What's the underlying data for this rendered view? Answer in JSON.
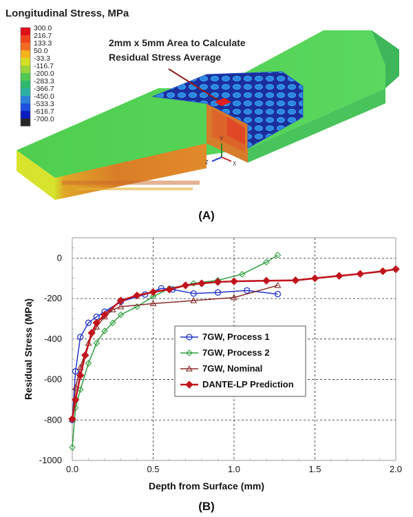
{
  "figure_a": {
    "legend_title": "Longitudinal Stress, MPa",
    "legend_values": [
      "300.0",
      "216.7",
      "133.3",
      "50.0",
      "-33.3",
      "-116.7",
      "-200.0",
      "-283.3",
      "-366.7",
      "-450.0",
      "-533.3",
      "-616.7",
      "-700.0"
    ],
    "legend_colors": [
      "#e0101a",
      "#f0441e",
      "#f46c22",
      "#f5b31c",
      "#d6df22",
      "#99d53a",
      "#52c850",
      "#2fb96f",
      "#2bb2a4",
      "#2c82d9",
      "#1d4fe0",
      "#0b1cc0",
      "#262626"
    ],
    "annotation_line1": "2mm x 5mm Area to Calculate",
    "annotation_line2": "Residual Stress Average",
    "axis_y": "Y",
    "axis_z": "Z",
    "axis_x": "X",
    "panel_label": "(A)"
  },
  "figure_b": {
    "panel_label": "(B)"
  },
  "chart_data": {
    "type": "line",
    "xlabel": "Depth from Surface (mm)",
    "ylabel": "Residual Stress (MPa)",
    "xlim": [
      0,
      2.0
    ],
    "ylim": [
      -1000,
      100
    ],
    "xticks": [
      0.0,
      0.5,
      1.0,
      1.5,
      2.0
    ],
    "xtick_labels": [
      "0.0",
      "0.5",
      "1.0",
      "1.5",
      "2.0"
    ],
    "yticks": [
      0,
      -200,
      -400,
      -600,
      -800,
      -1000
    ],
    "ytick_labels": [
      "0",
      "-200",
      "-400",
      "-600",
      "-800",
      "-1000"
    ],
    "grid": true,
    "legend_position": "center-right",
    "series": [
      {
        "name": "7GW, Process 1",
        "color": "#2233cc",
        "marker": "circle",
        "x": [
          0.0,
          0.02,
          0.05,
          0.1,
          0.15,
          0.2,
          0.3,
          0.45,
          0.55,
          0.62,
          0.75,
          0.9,
          1.08,
          1.27
        ],
        "y": [
          -800,
          -560,
          -390,
          -320,
          -290,
          -265,
          -215,
          -180,
          -150,
          -155,
          -175,
          -170,
          -160,
          -178
        ]
      },
      {
        "name": "7GW, Process 2",
        "color": "#2e9e3e",
        "marker": "diamond",
        "x": [
          0.0,
          0.02,
          0.05,
          0.1,
          0.15,
          0.2,
          0.25,
          0.3,
          0.4,
          0.5,
          0.6,
          0.75,
          0.9,
          1.05,
          1.2,
          1.27
        ],
        "y": [
          -935,
          -740,
          -650,
          -520,
          -420,
          -360,
          -320,
          -280,
          -240,
          -190,
          -150,
          -125,
          -110,
          -80,
          -20,
          15
        ]
      },
      {
        "name": "7GW, Nominal",
        "color": "#8a2a2a",
        "marker": "triangle",
        "x": [
          0.0,
          0.02,
          0.05,
          0.1,
          0.15,
          0.2,
          0.25,
          0.3,
          0.5,
          0.75,
          1.0,
          1.27
        ],
        "y": [
          -795,
          -640,
          -540,
          -420,
          -340,
          -290,
          -255,
          -240,
          -225,
          -210,
          -195,
          -135
        ]
      },
      {
        "name": "DANTE-LP Prediction",
        "color": "#c0141c",
        "marker": "diamond-filled",
        "x": [
          0.0,
          0.02,
          0.05,
          0.08,
          0.12,
          0.15,
          0.2,
          0.3,
          0.4,
          0.5,
          0.6,
          0.7,
          0.8,
          0.9,
          1.0,
          1.2,
          1.38,
          1.5,
          1.65,
          1.78,
          1.92,
          2.0
        ],
        "y": [
          -795,
          -700,
          -580,
          -480,
          -370,
          -320,
          -280,
          -210,
          -185,
          -168,
          -155,
          -135,
          -125,
          -118,
          -115,
          -112,
          -110,
          -100,
          -88,
          -78,
          -65,
          -55
        ]
      }
    ]
  }
}
